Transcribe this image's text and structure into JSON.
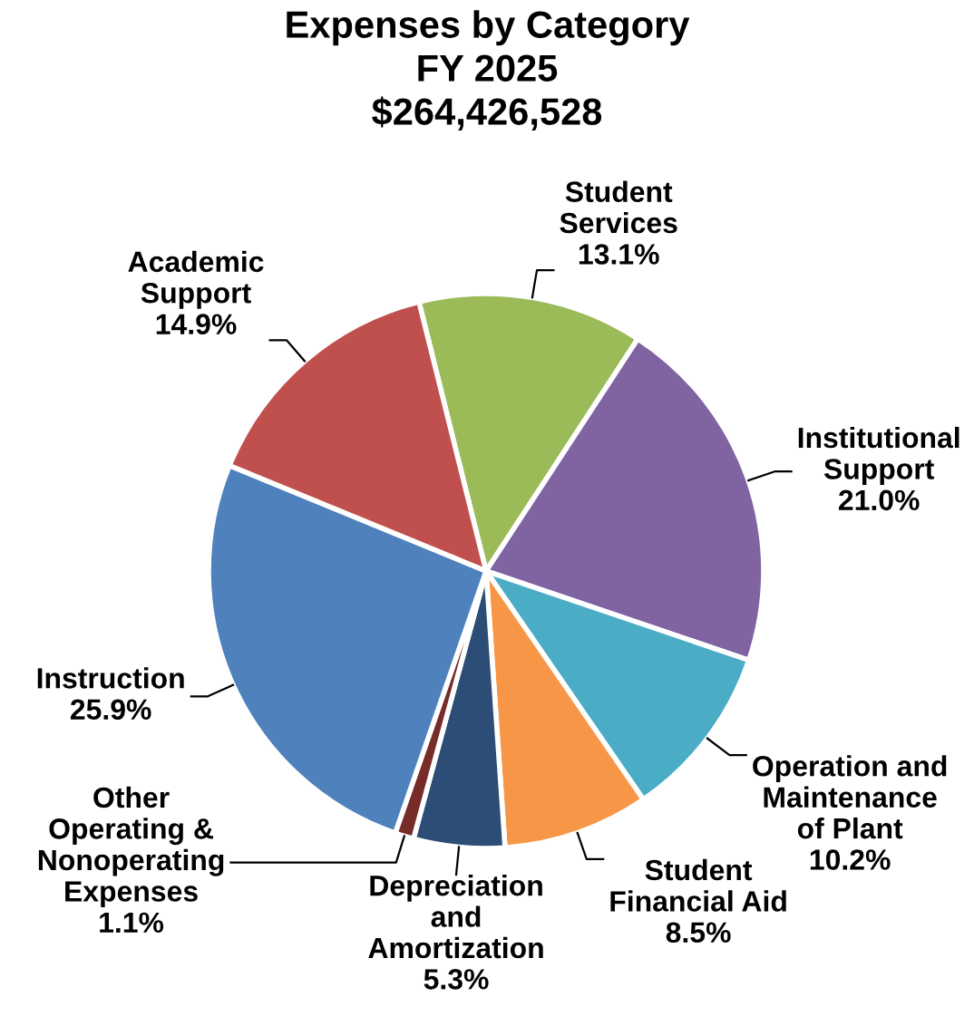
{
  "chart_data": {
    "type": "pie",
    "title": "Expenses by Category\nFY 2025\n$264,426,528",
    "categories": [
      "Student\nServices",
      "Institutional\nSupport",
      "Operation and\nMaintenance\nof Plant",
      "Student\nFinancial Aid",
      "Depreciation\nand\nAmortization",
      "Other\nOperating &\nNonoperating\nExpenses",
      "Instruction",
      "Academic\nSupport"
    ],
    "values": [
      13.1,
      21.0,
      10.2,
      8.5,
      5.3,
      1.1,
      25.9,
      14.9
    ],
    "value_labels": [
      "13.1%",
      "21.0%",
      "10.2%",
      "8.5%",
      "5.3%",
      "1.1%",
      "25.9%",
      "14.9%"
    ],
    "colors": [
      "#9bbb59",
      "#8064a2",
      "#4bacc6",
      "#f79646",
      "#2c4d75",
      "#772c2a",
      "#4f81bd",
      "#c0504d"
    ],
    "legend": false
  }
}
